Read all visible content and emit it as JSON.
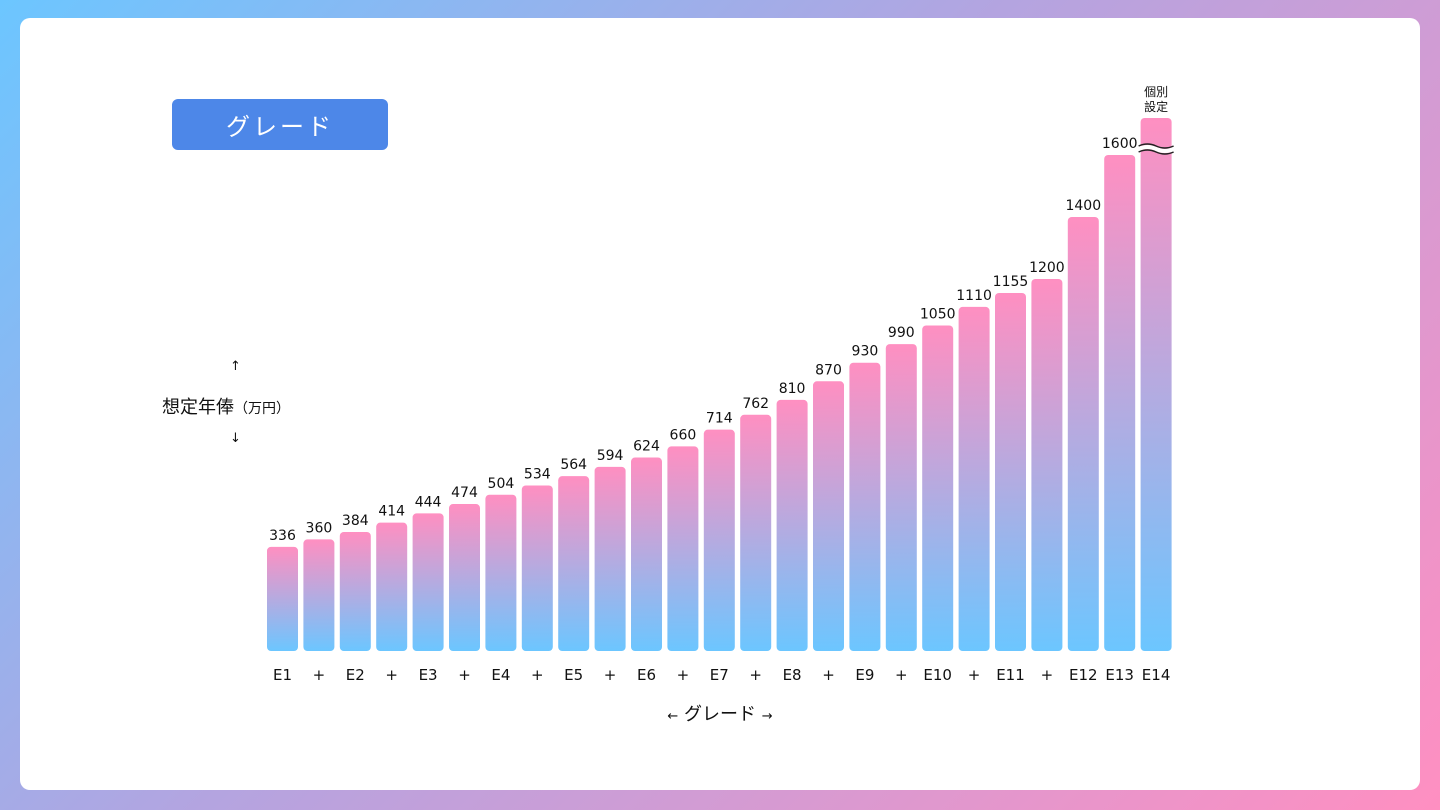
{
  "badge": {
    "label": "グレード"
  },
  "y_axis": {
    "label": "想定年俸",
    "unit": "（万円）",
    "arrow_up": "↑",
    "arrow_down": "↓"
  },
  "x_axis": {
    "label": "グレード",
    "arrow_left": "←",
    "arrow_right": "→"
  },
  "colors": {
    "badge": "#4d87e8",
    "bar_top": "#ff8fc1",
    "bar_bottom": "#6cc6ff"
  },
  "chart_data": {
    "type": "bar",
    "categories": [
      "E1",
      "+",
      "E2",
      "+",
      "E3",
      "+",
      "E4",
      "+",
      "E5",
      "+",
      "E6",
      "+",
      "E7",
      "+",
      "E8",
      "+",
      "E9",
      "+",
      "E10",
      "+",
      "E11",
      "+",
      "E12",
      "E13",
      "E14"
    ],
    "values": [
      336,
      360,
      384,
      414,
      444,
      474,
      504,
      534,
      564,
      594,
      624,
      660,
      714,
      762,
      810,
      870,
      930,
      990,
      1050,
      1110,
      1155,
      1200,
      1400,
      1600,
      null
    ],
    "data_labels": [
      "336",
      "360",
      "384",
      "414",
      "444",
      "474",
      "504",
      "534",
      "564",
      "594",
      "624",
      "660",
      "714",
      "762",
      "810",
      "870",
      "930",
      "990",
      "1050",
      "1110",
      "1155",
      "1200",
      "1400",
      "1600",
      "個別\n設定"
    ],
    "broken_last_bar": true,
    "xlabel": "グレード",
    "ylabel": "想定年俸（万円）",
    "grid": false
  }
}
